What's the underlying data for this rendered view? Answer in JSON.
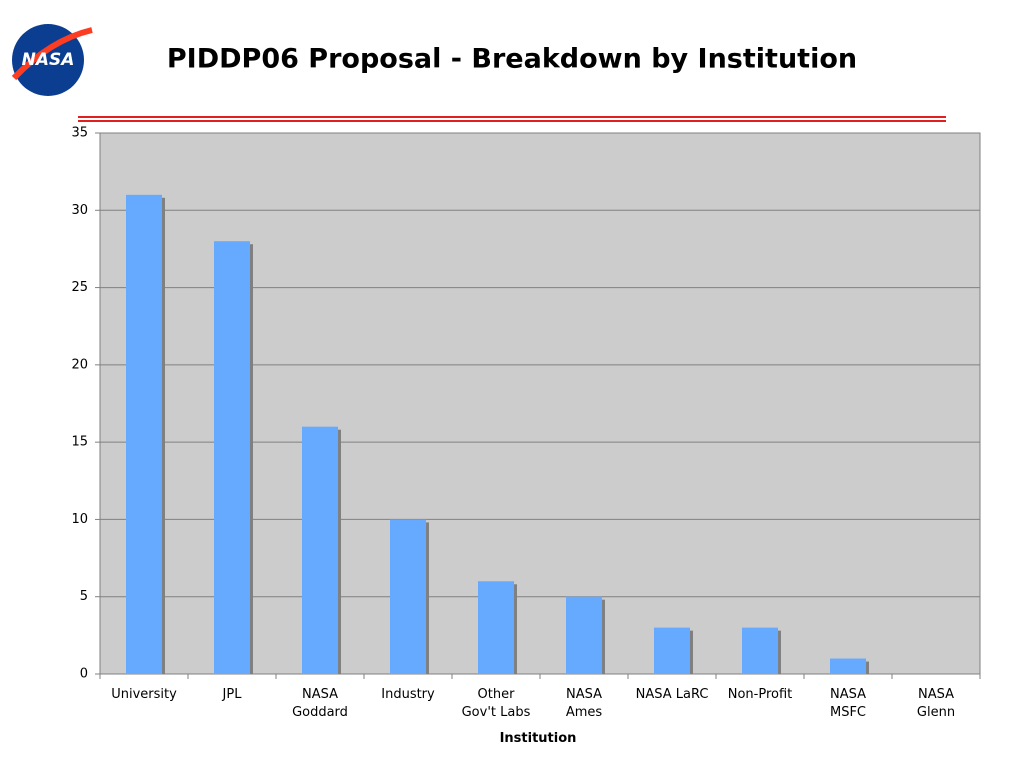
{
  "logo": "NASA",
  "chart_data": {
    "type": "bar",
    "title": "PIDDP06 Proposal - Breakdown by Institution",
    "x_label": "Institution",
    "categories": [
      "University",
      "JPL",
      "NASA\nGoddard",
      "Industry",
      "Other\nGov't Labs",
      "NASA\nAmes",
      "NASA LaRC",
      "Non-Profit",
      "NASA\nMSFC",
      "NASA\nGlenn"
    ],
    "values": [
      31,
      28,
      16,
      10,
      6,
      5,
      3,
      3,
      1,
      0
    ],
    "color": "#66aaff",
    "ylim": [
      0,
      35
    ],
    "yticks": [
      0,
      5,
      10,
      15,
      20,
      25,
      30,
      35
    ],
    "grid": true
  }
}
